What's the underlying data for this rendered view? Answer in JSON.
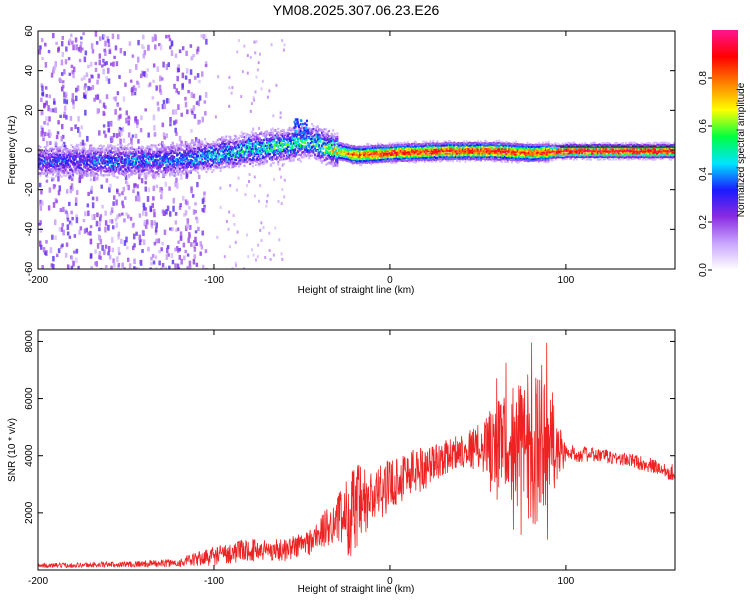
{
  "figure_title": "YM08.2025.307.06.23.E26",
  "chart_data": [
    {
      "type": "heatmap",
      "xlabel": "Height of straight line (km)",
      "ylabel": "Frequency (Hz)",
      "xlim": [
        -200,
        162
      ],
      "ylim": [
        -60,
        60
      ],
      "x_ticks": [
        -200,
        -100,
        0,
        100
      ],
      "x_tick_labels": [
        "-200",
        "-100",
        "0",
        "100"
      ],
      "y_ticks": [
        -60,
        -40,
        -20,
        0,
        20,
        40,
        60
      ],
      "y_tick_labels": [
        "-60",
        "-40",
        "-20",
        "0",
        "20",
        "40",
        "60"
      ],
      "colorbar": {
        "label": "Normalized spectral amplitude",
        "range": [
          0,
          1
        ],
        "ticks": [
          0.0,
          0.2,
          0.4,
          0.6,
          0.8
        ],
        "tick_labels": [
          "0.0",
          "0.2",
          "0.4",
          "0.6",
          "0.8"
        ],
        "colors": [
          "#ffffff",
          "#c9a6ff",
          "#8a2be2",
          "#1a1aff",
          "#00e5ff",
          "#00ff40",
          "#ffff00",
          "#ff8000",
          "#ff0000",
          "#ff1493"
        ]
      },
      "ridge": {
        "description_points": [
          {
            "x": -180,
            "f": -5,
            "amp": 0.35
          },
          {
            "x": -150,
            "f": -5,
            "amp": 0.4
          },
          {
            "x": -120,
            "f": -4,
            "amp": 0.4
          },
          {
            "x": -100,
            "f": -2,
            "amp": 0.45
          },
          {
            "x": -80,
            "f": 1,
            "amp": 0.5
          },
          {
            "x": -60,
            "f": 3,
            "amp": 0.55
          },
          {
            "x": -45,
            "f": 5,
            "amp": 0.5
          },
          {
            "x": -30,
            "f": 0,
            "amp": 0.7
          },
          {
            "x": -20,
            "f": -2,
            "amp": 0.85
          },
          {
            "x": 0,
            "f": -1,
            "amp": 0.9
          },
          {
            "x": 30,
            "f": 0,
            "amp": 0.9
          },
          {
            "x": 60,
            "f": 0,
            "amp": 0.9
          },
          {
            "x": 80,
            "f": -1,
            "amp": 0.85
          },
          {
            "x": 100,
            "f": 0,
            "amp": 0.95
          },
          {
            "x": 160,
            "f": 0,
            "amp": 0.95
          }
        ]
      }
    },
    {
      "type": "line",
      "xlabel": "Height of straight line (km)",
      "ylabel": "SNR (10 * v/v)",
      "xlim": [
        -200,
        162
      ],
      "ylim": [
        0,
        8400
      ],
      "x_ticks": [
        -200,
        -100,
        0,
        100
      ],
      "x_tick_labels": [
        "-200",
        "-100",
        "0",
        "100"
      ],
      "y_ticks": [
        2000,
        4000,
        6000,
        8000
      ],
      "y_tick_labels": [
        "2000",
        "4000",
        "6000",
        "8000"
      ],
      "series": [
        {
          "name": "SNR",
          "color": "#ee2222",
          "envelope_x": [
            -200,
            -150,
            -120,
            -100,
            -80,
            -60,
            -45,
            -30,
            -20,
            -10,
            0,
            10,
            20,
            30,
            40,
            50,
            60,
            70,
            80,
            90,
            100,
            120,
            140,
            162
          ],
          "envelope_mean": [
            150,
            200,
            250,
            500,
            700,
            700,
            1000,
            1800,
            2000,
            2500,
            3000,
            3400,
            3600,
            3900,
            4200,
            4300,
            4400,
            4400,
            4300,
            4300,
            4100,
            4000,
            3800,
            3400
          ],
          "envelope_noise": [
            80,
            100,
            150,
            350,
            400,
            400,
            500,
            800,
            1800,
            1000,
            900,
            900,
            800,
            600,
            600,
            800,
            1500,
            2000,
            2800,
            2500,
            300,
            250,
            250,
            300
          ]
        }
      ]
    }
  ]
}
